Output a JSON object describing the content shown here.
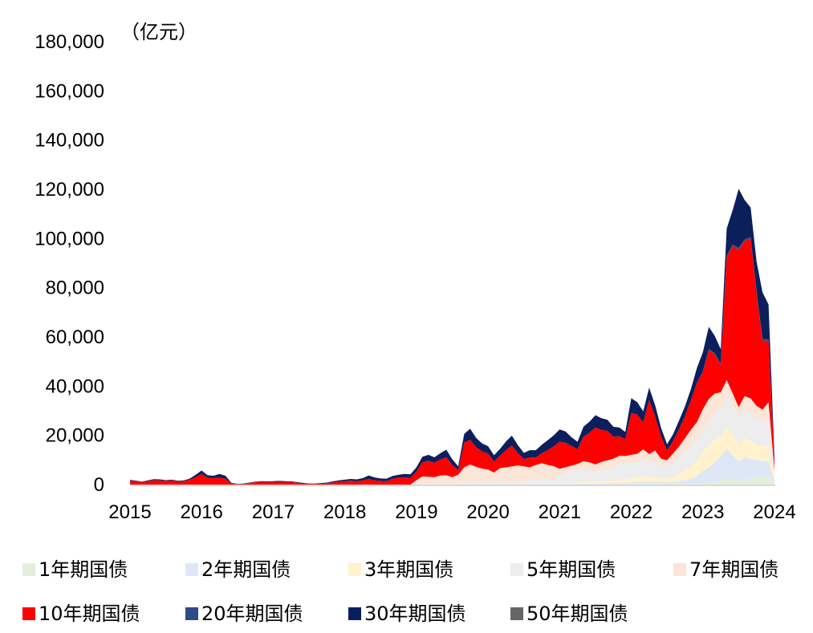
{
  "chart_data": {
    "type": "area",
    "stacked": true,
    "title": "",
    "unit_label": "（亿元）",
    "xlabel": "",
    "ylabel": "",
    "ylim": [
      0,
      180000
    ],
    "y_ticks": [
      0,
      20000,
      40000,
      60000,
      80000,
      100000,
      120000,
      140000,
      160000,
      180000
    ],
    "y_tick_labels": [
      "0",
      "20,000",
      "40,000",
      "60,000",
      "80,000",
      "100,000",
      "120,000",
      "140,000",
      "160,000",
      "180,000"
    ],
    "x_ticks": [
      2015,
      2016,
      2017,
      2018,
      2019,
      2020,
      2021,
      2022,
      2023,
      2024
    ],
    "x_tick_labels": [
      "2015",
      "2016",
      "2017",
      "2018",
      "2019",
      "2020",
      "2021",
      "2022",
      "2023",
      "2024"
    ],
    "legend_position": "bottom",
    "x": [
      2015.0,
      2015.083,
      2015.167,
      2015.25,
      2015.333,
      2015.417,
      2015.5,
      2015.583,
      2015.667,
      2015.75,
      2015.833,
      2015.917,
      2016.0,
      2016.083,
      2016.167,
      2016.25,
      2016.333,
      2016.417,
      2016.5,
      2016.583,
      2016.667,
      2016.75,
      2016.833,
      2016.917,
      2017.0,
      2017.083,
      2017.167,
      2017.25,
      2017.333,
      2017.417,
      2017.5,
      2017.583,
      2017.667,
      2017.75,
      2017.833,
      2017.917,
      2018.0,
      2018.083,
      2018.167,
      2018.25,
      2018.333,
      2018.417,
      2018.5,
      2018.583,
      2018.667,
      2018.75,
      2018.833,
      2018.917,
      2019.0,
      2019.083,
      2019.167,
      2019.25,
      2019.333,
      2019.417,
      2019.5,
      2019.583,
      2019.667,
      2019.75,
      2019.833,
      2019.917,
      2020.0,
      2020.083,
      2020.167,
      2020.25,
      2020.333,
      2020.417,
      2020.5,
      2020.583,
      2020.667,
      2020.75,
      2020.833,
      2020.917,
      2021.0,
      2021.083,
      2021.167,
      2021.25,
      2021.333,
      2021.417,
      2021.5,
      2021.583,
      2021.667,
      2021.75,
      2021.833,
      2021.917,
      2022.0,
      2022.083,
      2022.167,
      2022.25,
      2022.333,
      2022.417,
      2022.5,
      2022.583,
      2022.667,
      2022.75,
      2022.833,
      2022.917,
      2023.0,
      2023.083,
      2023.167,
      2023.25,
      2023.333,
      2023.417,
      2023.5,
      2023.583,
      2023.667,
      2023.75,
      2023.833,
      2023.917,
      2024.0
    ],
    "series": [
      {
        "name": "1年期国债",
        "color": "#e2efda",
        "values": [
          0,
          0,
          0,
          0,
          0,
          0,
          0,
          0,
          0,
          0,
          0,
          0,
          0,
          0,
          0,
          0,
          0,
          0,
          0,
          0,
          0,
          0,
          0,
          0,
          0,
          0,
          0,
          0,
          0,
          0,
          0,
          0,
          0,
          0,
          0,
          0,
          0,
          0,
          0,
          0,
          0,
          0,
          0,
          0,
          0,
          0,
          0,
          0,
          0,
          0,
          0,
          0,
          0,
          0,
          0,
          0,
          0,
          0,
          0,
          0,
          0,
          0,
          0,
          0,
          0,
          0,
          0,
          0,
          0,
          0,
          0,
          0,
          0,
          0,
          0,
          0,
          0,
          0,
          0,
          0,
          0,
          0,
          0,
          0,
          300,
          300,
          300,
          300,
          300,
          300,
          300,
          300,
          300,
          300,
          300,
          400,
          600,
          800,
          1000,
          1500,
          2500,
          2000,
          1500,
          2000,
          2500,
          3000,
          3500,
          3500,
          500
        ]
      },
      {
        "name": "2年期国债",
        "color": "#dde7f6",
        "values": [
          0,
          0,
          0,
          0,
          0,
          0,
          0,
          0,
          0,
          0,
          0,
          0,
          0,
          0,
          0,
          0,
          0,
          0,
          0,
          0,
          0,
          0,
          0,
          0,
          0,
          0,
          0,
          0,
          0,
          0,
          0,
          0,
          0,
          0,
          0,
          0,
          0,
          0,
          0,
          0,
          0,
          0,
          0,
          0,
          0,
          0,
          0,
          0,
          0,
          0,
          0,
          0,
          0,
          0,
          0,
          0,
          0,
          0,
          0,
          0,
          0,
          0,
          0,
          0,
          0,
          0,
          0,
          0,
          0,
          0,
          0,
          0,
          100,
          150,
          200,
          300,
          300,
          350,
          400,
          400,
          450,
          500,
          600,
          700,
          800,
          900,
          1000,
          800,
          1000,
          700,
          600,
          800,
          1200,
          1500,
          2000,
          3000,
          5000,
          6000,
          8000,
          10000,
          12000,
          10000,
          8000,
          9000,
          8000,
          7000,
          6000,
          6000,
          1000
        ]
      },
      {
        "name": "3年期国债",
        "color": "#fff2cc",
        "values": [
          0,
          0,
          0,
          0,
          0,
          0,
          0,
          0,
          0,
          0,
          0,
          0,
          0,
          0,
          0,
          0,
          0,
          0,
          0,
          0,
          0,
          0,
          0,
          0,
          0,
          0,
          0,
          0,
          0,
          0,
          0,
          0,
          0,
          0,
          0,
          0,
          0,
          0,
          0,
          0,
          0,
          0,
          0,
          0,
          0,
          0,
          0,
          0,
          0,
          0,
          0,
          0,
          0,
          0,
          0,
          0,
          0,
          0,
          0,
          0,
          0,
          0,
          0,
          0,
          0,
          0,
          0,
          0,
          0,
          0,
          0,
          0,
          300,
          400,
          500,
          600,
          700,
          700,
          800,
          800,
          900,
          1000,
          1100,
          1200,
          1500,
          1800,
          2000,
          1800,
          2000,
          1500,
          1500,
          2000,
          3000,
          4000,
          5000,
          6000,
          8000,
          9000,
          9000,
          8000,
          9000,
          8000,
          7000,
          8000,
          7000,
          6000,
          6000,
          7000,
          1500
        ]
      },
      {
        "name": "5年期国债",
        "color": "#ededed",
        "values": [
          0,
          0,
          0,
          0,
          0,
          0,
          0,
          0,
          0,
          0,
          0,
          0,
          0,
          0,
          0,
          0,
          0,
          0,
          0,
          0,
          0,
          0,
          0,
          0,
          0,
          0,
          0,
          0,
          0,
          0,
          0,
          0,
          0,
          0,
          0,
          0,
          0,
          0,
          0,
          0,
          0,
          0,
          0,
          0,
          0,
          0,
          0,
          0,
          300,
          500,
          500,
          600,
          700,
          600,
          500,
          800,
          1000,
          1200,
          1200,
          1000,
          1100,
          900,
          1200,
          1500,
          1400,
          1300,
          1400,
          1500,
          2000,
          2200,
          2000,
          2000,
          3500,
          4500,
          5000,
          5000,
          5500,
          5000,
          4000,
          5000,
          5500,
          6000,
          7000,
          6500,
          6000,
          6000,
          7000,
          6000,
          6500,
          5000,
          5000,
          6000,
          7000,
          8000,
          9000,
          9000,
          9000,
          10000,
          11000,
          12000,
          13000,
          12000,
          11000,
          12000,
          12000,
          11000,
          10000,
          11000,
          2000
        ]
      },
      {
        "name": "7年期国债",
        "color": "#fbe5d6",
        "values": [
          0,
          0,
          0,
          0,
          0,
          0,
          0,
          0,
          0,
          0,
          0,
          0,
          0,
          0,
          0,
          0,
          0,
          0,
          0,
          0,
          0,
          0,
          0,
          0,
          0,
          0,
          0,
          0,
          0,
          0,
          0,
          0,
          0,
          0,
          0,
          0,
          0,
          0,
          0,
          0,
          0,
          0,
          0,
          0,
          0,
          0,
          0,
          0,
          1500,
          2800,
          2700,
          2400,
          3000,
          3200,
          2500,
          3200,
          6000,
          7000,
          6000,
          5500,
          5000,
          4000,
          5500,
          5500,
          6000,
          6500,
          6000,
          5500,
          6000,
          6500,
          6000,
          5500,
          2500,
          2000,
          2000,
          2500,
          3000,
          3000,
          3000,
          3000,
          3000,
          3000,
          3000,
          3200,
          3500,
          3500,
          4000,
          3500,
          4000,
          3000,
          2500,
          3500,
          4000,
          5000,
          6000,
          7000,
          8000,
          9000,
          8000,
          6000,
          6000,
          5000,
          4000,
          5000,
          5500,
          5000,
          5000,
          6000,
          1000
        ]
      },
      {
        "name": "10年期国债",
        "color": "#ff0000",
        "values": [
          1600,
          1400,
          1000,
          1400,
          1800,
          1700,
          1500,
          1700,
          1400,
          1400,
          1900,
          3000,
          4300,
          2800,
          2600,
          2800,
          2400,
          500,
          200,
          300,
          700,
          1000,
          1100,
          1000,
          1100,
          1200,
          1100,
          1000,
          800,
          500,
          300,
          300,
          400,
          600,
          900,
          1200,
          1400,
          1600,
          1400,
          1700,
          2300,
          1700,
          1500,
          1400,
          2400,
          2800,
          2900,
          2700,
          3500,
          5800,
          6500,
          5800,
          6500,
          7300,
          5000,
          1900,
          10000,
          10000,
          8000,
          7000,
          6500,
          4500,
          5000,
          7000,
          8500,
          5000,
          3000,
          4000,
          3000,
          4000,
          6000,
          8000,
          11000,
          10000,
          8000,
          6000,
          10000,
          12000,
          15000,
          13000,
          12000,
          9000,
          8000,
          6800,
          17000,
          16000,
          11000,
          22000,
          14000,
          9000,
          4000,
          5000,
          7000,
          9000,
          12000,
          16000,
          15000,
          20000,
          16000,
          11000,
          50000,
          60000,
          64000,
          63000,
          65000,
          46000,
          28000,
          25000,
          3000
        ]
      },
      {
        "name": "20年期国债",
        "color": "#2f4a85",
        "values": [
          0,
          0,
          0,
          0,
          0,
          0,
          0,
          0,
          0,
          0,
          0,
          0,
          0,
          0,
          0,
          0,
          0,
          0,
          0,
          0,
          0,
          0,
          0,
          0,
          0,
          0,
          0,
          0,
          0,
          0,
          0,
          0,
          0,
          0,
          0,
          0,
          0,
          0,
          0,
          0,
          0,
          0,
          0,
          0,
          0,
          0,
          0,
          0,
          0,
          0,
          0,
          0,
          0,
          0,
          0,
          0,
          0,
          0,
          0,
          0,
          0,
          0,
          0,
          0,
          0,
          0,
          0,
          0,
          0,
          0,
          0,
          0,
          0,
          0,
          0,
          0,
          0,
          0,
          0,
          0,
          0,
          0,
          0,
          0,
          0,
          0,
          0,
          0,
          0,
          0,
          0,
          0,
          0,
          0,
          0,
          0,
          200,
          300,
          400,
          500,
          600,
          600,
          700,
          700,
          600,
          600,
          600,
          700,
          100
        ]
      },
      {
        "name": "30年期国债",
        "color": "#0b1f5c",
        "values": [
          300,
          200,
          200,
          300,
          400,
          400,
          300,
          300,
          200,
          300,
          500,
          1000,
          1400,
          1000,
          1000,
          1500,
          1200,
          200,
          100,
          100,
          100,
          200,
          300,
          300,
          300,
          300,
          300,
          300,
          200,
          200,
          100,
          100,
          200,
          200,
          400,
          500,
          600,
          700,
          700,
          900,
          1400,
          1200,
          1000,
          1000,
          1100,
          1200,
          1400,
          1500,
          1700,
          2200,
          2400,
          2300,
          2500,
          3100,
          2300,
          1500,
          3600,
          4500,
          3800,
          3200,
          3000,
          2500,
          2800,
          3500,
          4000,
          3200,
          2500,
          3000,
          3000,
          3500,
          4000,
          4500,
          5000,
          4500,
          3500,
          3000,
          4000,
          4500,
          5000,
          4800,
          4500,
          4000,
          3500,
          3000,
          6000,
          5000,
          4500,
          5000,
          4500,
          3500,
          2500,
          2800,
          3500,
          4000,
          4500,
          6000,
          8000,
          9000,
          7000,
          6000,
          11000,
          14000,
          24000,
          16000,
          12000,
          12000,
          19000,
          14000,
          2000
        ]
      },
      {
        "name": "50年期国债",
        "color": "#666666",
        "values": [
          0,
          0,
          0,
          0,
          0,
          0,
          0,
          0,
          0,
          0,
          0,
          0,
          0,
          0,
          0,
          0,
          0,
          0,
          0,
          0,
          0,
          0,
          0,
          0,
          0,
          0,
          0,
          0,
          0,
          0,
          0,
          0,
          0,
          0,
          0,
          0,
          0,
          0,
          0,
          0,
          0,
          0,
          0,
          0,
          0,
          0,
          0,
          0,
          0,
          0,
          0,
          0,
          0,
          0,
          0,
          0,
          0,
          0,
          0,
          0,
          0,
          0,
          0,
          0,
          0,
          0,
          0,
          0,
          0,
          0,
          0,
          0,
          0,
          0,
          0,
          0,
          0,
          0,
          0,
          0,
          0,
          0,
          0,
          0,
          0,
          0,
          0,
          0,
          0,
          0,
          0,
          0,
          0,
          0,
          0,
          0,
          0,
          0,
          0,
          0,
          0,
          0,
          0,
          0,
          0,
          0,
          0,
          0,
          0
        ]
      }
    ]
  }
}
